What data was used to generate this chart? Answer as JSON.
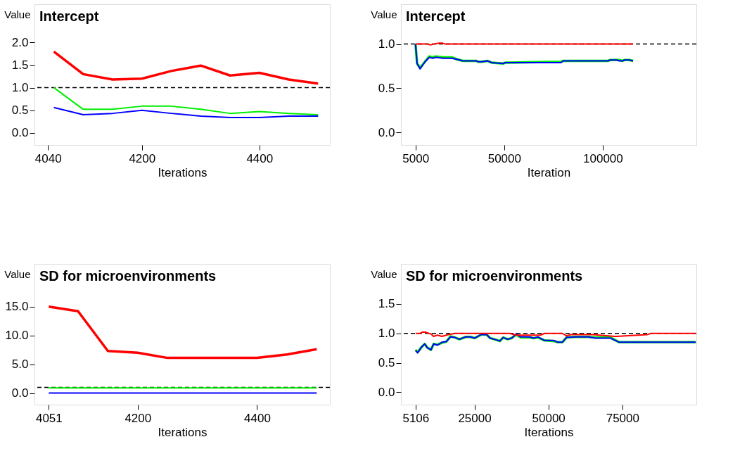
{
  "chart_data": [
    {
      "type": "line",
      "title": "Intercept",
      "xlabel": "Iterations",
      "ylabel": "Value",
      "xlim": [
        4017,
        4520
      ],
      "ylim": [
        -0.27,
        2.85
      ],
      "xticks": [
        4040,
        4200,
        4400
      ],
      "yticks": [
        {
          "value": 0,
          "label": "0.0"
        },
        {
          "value": 0.5,
          "label": "0.5"
        },
        {
          "value": 1,
          "label": "1.0"
        },
        {
          "value": 1.5,
          "label": "1.5"
        },
        {
          "value": 2,
          "label": "2.0"
        }
      ],
      "grid": false,
      "legend": false,
      "ref_lines": [
        {
          "axis": "y",
          "value": 1.0,
          "color": "#000000",
          "line_style": "dashed"
        }
      ],
      "series": [
        {
          "color": "#ff0000",
          "x": [
            4050,
            4100,
            4150,
            4200,
            4250,
            4300,
            4350,
            4400,
            4450,
            4500
          ],
          "values": [
            1.8,
            1.3,
            1.18,
            1.2,
            1.37,
            1.49,
            1.27,
            1.33,
            1.18,
            1.09
          ]
        },
        {
          "color": "#00ee00",
          "x": [
            4050,
            4100,
            4150,
            4200,
            4250,
            4300,
            4350,
            4400,
            4450,
            4500
          ],
          "values": [
            1.0,
            0.52,
            0.52,
            0.59,
            0.59,
            0.52,
            0.43,
            0.47,
            0.43,
            0.4
          ]
        },
        {
          "color": "#0000ff",
          "x": [
            4050,
            4100,
            4150,
            4200,
            4250,
            4300,
            4350,
            4400,
            4450,
            4500
          ],
          "values": [
            0.56,
            0.4,
            0.43,
            0.5,
            0.43,
            0.37,
            0.34,
            0.34,
            0.37,
            0.37
          ]
        }
      ]
    },
    {
      "type": "line",
      "title": "Intercept",
      "xlabel": "Iteration",
      "ylabel": "Value",
      "xlim": [
        -2400,
        147500
      ],
      "ylim": [
        -0.14,
        1.45
      ],
      "xticks": [
        5000,
        50000,
        100000
      ],
      "yticks": [
        {
          "value": 0,
          "label": "0.0"
        },
        {
          "value": 0.5,
          "label": "0.5"
        },
        {
          "value": 1,
          "label": "1.0"
        }
      ],
      "grid": false,
      "legend": false,
      "ref_lines": [
        {
          "axis": "y",
          "value": 1.0,
          "color": "#000000",
          "line_style": "dashed"
        }
      ],
      "series": [
        {
          "color": "#00ee00",
          "x": [
            5000,
            5800,
            7300,
            9800,
            12000,
            13700,
            15400,
            18800,
            23400,
            25600,
            29000,
            35800,
            36900,
            38600,
            41500,
            43700,
            49400,
            50500,
            52800,
            78800,
            80000,
            102600,
            103800,
            107200,
            108300,
            110000,
            111100,
            113400,
            115400
          ],
          "values": [
            1.0,
            0.78,
            0.73,
            0.8,
            0.86,
            0.85,
            0.86,
            0.85,
            0.85,
            0.83,
            0.81,
            0.81,
            0.8,
            0.8,
            0.81,
            0.79,
            0.78,
            0.79,
            0.79,
            0.8,
            0.81,
            0.81,
            0.82,
            0.82,
            0.82,
            0.81,
            0.82,
            0.82,
            0.81
          ]
        },
        {
          "color": "#0000ff",
          "x": [
            5000,
            5800,
            7300,
            9800,
            12000,
            13700,
            15400,
            18800,
            23400,
            25600,
            29000,
            35800,
            36900,
            38600,
            41500,
            43700,
            49400,
            50500,
            52800,
            78800,
            80000,
            102600,
            103800,
            107200,
            108300,
            110000,
            111100,
            113400,
            115400
          ],
          "values": [
            1.0,
            0.78,
            0.72,
            0.8,
            0.85,
            0.84,
            0.85,
            0.84,
            0.84,
            0.83,
            0.81,
            0.81,
            0.8,
            0.8,
            0.81,
            0.79,
            0.78,
            0.79,
            0.79,
            0.79,
            0.81,
            0.81,
            0.82,
            0.82,
            0.81,
            0.81,
            0.82,
            0.82,
            0.81
          ]
        },
        {
          "color": "#ff0000",
          "x": [
            5000,
            10900,
            12600,
            14300,
            17100,
            18800,
            20000,
            115400
          ],
          "values": [
            1.0,
            1.0,
            0.99,
            1.0,
            1.01,
            1.01,
            1.0,
            1.0
          ]
        }
      ]
    },
    {
      "type": "line",
      "title": "SD for microenvironments",
      "xlabel": "Iterations",
      "ylabel": "Value",
      "xlim": [
        4027,
        4522
      ],
      "ylim": [
        -2.0,
        22.4
      ],
      "xticks": [
        4051,
        4200,
        4400
      ],
      "yticks": [
        {
          "value": 0,
          "label": "0.0"
        },
        {
          "value": 5,
          "label": "5.0"
        },
        {
          "value": 10,
          "label": "10.0"
        },
        {
          "value": 15,
          "label": "15.0"
        }
      ],
      "grid": false,
      "legend": false,
      "ref_lines": [
        {
          "axis": "y",
          "value": 1.0,
          "color": "#000000",
          "line_style": "dashed"
        }
      ],
      "series": [
        {
          "color": "#ff0000",
          "x": [
            4051,
            4100,
            4150,
            4200,
            4250,
            4300,
            4350,
            4400,
            4450,
            4500
          ],
          "values": [
            15.0,
            14.2,
            7.3,
            7.0,
            6.1,
            6.1,
            6.1,
            6.1,
            6.7,
            7.6
          ]
        },
        {
          "color": "#00ee00",
          "x": [
            4051,
            4100,
            4150,
            4200,
            4250,
            4300,
            4350,
            4400,
            4450,
            4500
          ],
          "values": [
            0.9,
            0.9,
            0.9,
            0.9,
            0.9,
            0.9,
            0.9,
            0.9,
            0.9,
            0.9
          ]
        },
        {
          "color": "#0000ff",
          "x": [
            4051,
            4100,
            4150,
            4200,
            4250,
            4300,
            4350,
            4400,
            4450,
            4500
          ],
          "values": [
            0.0,
            0.0,
            0.0,
            0.0,
            0.0,
            0.0,
            0.0,
            0.0,
            0.0,
            0.0
          ]
        }
      ]
    },
    {
      "type": "line",
      "title": "SD for microenvironments",
      "xlabel": "Iterations",
      "ylabel": "Value",
      "xlim": [
        150,
        100000
      ],
      "ylim": [
        -0.21,
        2.18
      ],
      "xticks": [
        5106,
        25000,
        50000,
        75000
      ],
      "yticks": [
        {
          "value": 0,
          "label": "0.0"
        },
        {
          "value": 0.5,
          "label": "0.5"
        },
        {
          "value": 1,
          "label": "1.0"
        },
        {
          "value": 1.5,
          "label": "1.5"
        }
      ],
      "grid": false,
      "legend": false,
      "ref_lines": [
        {
          "axis": "y",
          "value": 1.0,
          "color": "#000000",
          "line_style": "dashed"
        }
      ],
      "series": [
        {
          "color": "#00ee00",
          "x": [
            5100,
            5800,
            7000,
            8200,
            9000,
            10300,
            11200,
            12500,
            14000,
            15500,
            16900,
            18400,
            19900,
            22100,
            23600,
            25100,
            27300,
            29100,
            30300,
            31700,
            33600,
            34700,
            36200,
            37600,
            39100,
            40600,
            43600,
            45000,
            46500,
            48700,
            51700,
            53200,
            54700,
            56100,
            59100,
            63500,
            65800,
            70900,
            73900,
            99800
          ],
          "values": [
            0.72,
            0.68,
            0.76,
            0.82,
            0.76,
            0.72,
            0.82,
            0.81,
            0.84,
            0.86,
            0.95,
            0.93,
            0.9,
            0.94,
            0.94,
            0.92,
            0.98,
            0.98,
            0.92,
            0.9,
            0.87,
            0.93,
            0.9,
            0.92,
            0.98,
            0.93,
            0.93,
            0.92,
            0.93,
            0.88,
            0.87,
            0.85,
            0.85,
            0.93,
            0.94,
            0.94,
            0.93,
            0.93,
            0.85,
            0.85
          ]
        },
        {
          "color": "#0000ff",
          "x": [
            5100,
            5800,
            7000,
            8200,
            9000,
            10300,
            11200,
            12500,
            14000,
            15500,
            16900,
            18400,
            19900,
            22100,
            23600,
            25100,
            27300,
            29100,
            30300,
            31700,
            33600,
            34700,
            36200,
            37600,
            39100,
            40600,
            43600,
            45000,
            46500,
            48700,
            51700,
            53200,
            54700,
            56100,
            59100,
            63500,
            65800,
            70900,
            73900,
            99800
          ],
          "values": [
            0.71,
            0.67,
            0.76,
            0.82,
            0.76,
            0.72,
            0.82,
            0.8,
            0.85,
            0.86,
            0.94,
            0.93,
            0.9,
            0.94,
            0.94,
            0.92,
            0.98,
            0.98,
            0.92,
            0.9,
            0.87,
            0.93,
            0.9,
            0.92,
            0.99,
            0.94,
            0.94,
            0.92,
            0.94,
            0.88,
            0.88,
            0.85,
            0.85,
            0.93,
            0.94,
            0.94,
            0.92,
            0.92,
            0.85,
            0.85
          ]
        },
        {
          "color": "#ff0000",
          "x": [
            5100,
            6600,
            7300,
            8400,
            10300,
            11200,
            12500,
            14000,
            16200,
            18400,
            36900,
            39100,
            41300,
            47300,
            48700,
            54700,
            56100,
            57600,
            65000,
            72400,
            73100,
            83500,
            84600,
            99800
          ],
          "values": [
            1.0,
            1.0,
            1.02,
            1.02,
            0.99,
            0.95,
            0.97,
            0.95,
            0.98,
            1.0,
            1.0,
            0.97,
            0.97,
            0.97,
            1.0,
            1.0,
            0.96,
            0.98,
            0.98,
            0.95,
            0.95,
            0.98,
            1.0,
            1.0
          ]
        }
      ]
    }
  ]
}
